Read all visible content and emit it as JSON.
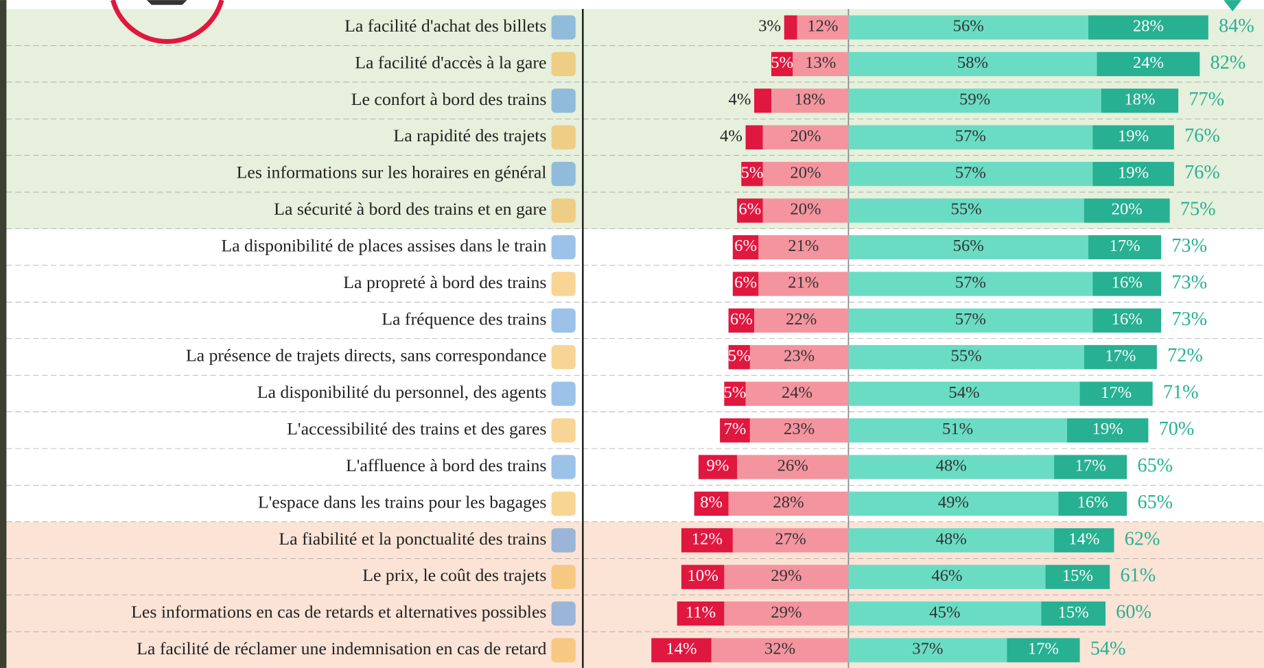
{
  "chart_data": {
    "type": "diverging_bar",
    "categories": [
      "La facilité d'achat des billets",
      "La facilité d'accès à la gare",
      "Le confort à bord des trains",
      "La rapidité des trajets",
      "Les informations sur les horaires en général",
      "La sécurité à bord des trains et en gare",
      "La disponibilité de places assises dans le train",
      "La propreté à bord des trains",
      "La fréquence des trains",
      "La présence de trajets directs, sans correspondance",
      "La disponibilité du personnel, des agents",
      "L'accessibilité des trains et des gares",
      "L'affluence à bord des trains",
      "L'espace dans les trains pour les bagages",
      "La fiabilité et la ponctualité des trains",
      "Le prix, le coût des trajets",
      "Les informations en cas de retards et alternatives possibles",
      "La facilité de réclamer une indemnisation en cas de retard"
    ],
    "xlim": [
      -62,
      97
    ],
    "series": [
      {
        "color": "#f4949f",
        "side": "negative",
        "values": [
          12,
          13,
          18,
          20,
          20,
          20,
          21,
          21,
          22,
          23,
          24,
          23,
          26,
          28,
          27,
          29,
          29,
          32
        ],
        "value_labels": [
          "12%",
          "13%",
          "18%",
          "20%",
          "20%",
          "20%",
          "21%",
          "21%",
          "22%",
          "23%",
          "24%",
          "23%",
          "26%",
          "28%",
          "27%",
          "29%",
          "29%",
          "32%"
        ]
      },
      {
        "color": "#e0173f",
        "side": "negative",
        "values": [
          3,
          5,
          4,
          4,
          5,
          6,
          6,
          6,
          6,
          5,
          5,
          7,
          9,
          8,
          12,
          10,
          11,
          14
        ],
        "value_labels": [
          "3%",
          "5%",
          "4%",
          "4%",
          "5%",
          "6%",
          "6%",
          "6%",
          "6%",
          "5%",
          "5%",
          "7%",
          "9%",
          "8%",
          "12%",
          "10%",
          "11%",
          "14%"
        ]
      },
      {
        "color": "#6adcc4",
        "side": "positive",
        "values": [
          56,
          58,
          59,
          57,
          57,
          55,
          56,
          57,
          57,
          55,
          54,
          51,
          48,
          49,
          48,
          46,
          45,
          37
        ],
        "value_labels": [
          "56%",
          "58%",
          "59%",
          "57%",
          "57%",
          "55%",
          "56%",
          "57%",
          "57%",
          "55%",
          "54%",
          "51%",
          "48%",
          "49%",
          "48%",
          "46%",
          "45%",
          "37%"
        ]
      },
      {
        "color": "#27b092",
        "side": "positive",
        "values": [
          28,
          24,
          18,
          19,
          19,
          20,
          17,
          16,
          16,
          17,
          17,
          19,
          17,
          16,
          14,
          15,
          15,
          17
        ],
        "value_labels": [
          "28%",
          "24%",
          "18%",
          "19%",
          "19%",
          "20%",
          "17%",
          "16%",
          "16%",
          "17%",
          "17%",
          "19%",
          "17%",
          "16%",
          "14%",
          "15%",
          "15%",
          "17%"
        ]
      }
    ],
    "totals": [
      84,
      82,
      77,
      76,
      76,
      75,
      73,
      73,
      73,
      72,
      71,
      70,
      65,
      65,
      62,
      61,
      60,
      54
    ],
    "total_labels": [
      "84%",
      "82%",
      "77%",
      "76%",
      "76%",
      "75%",
      "73%",
      "73%",
      "73%",
      "72%",
      "71%",
      "70%",
      "65%",
      "65%",
      "62%",
      "61%",
      "60%",
      "54%"
    ],
    "total_color": "#27b092"
  }
}
